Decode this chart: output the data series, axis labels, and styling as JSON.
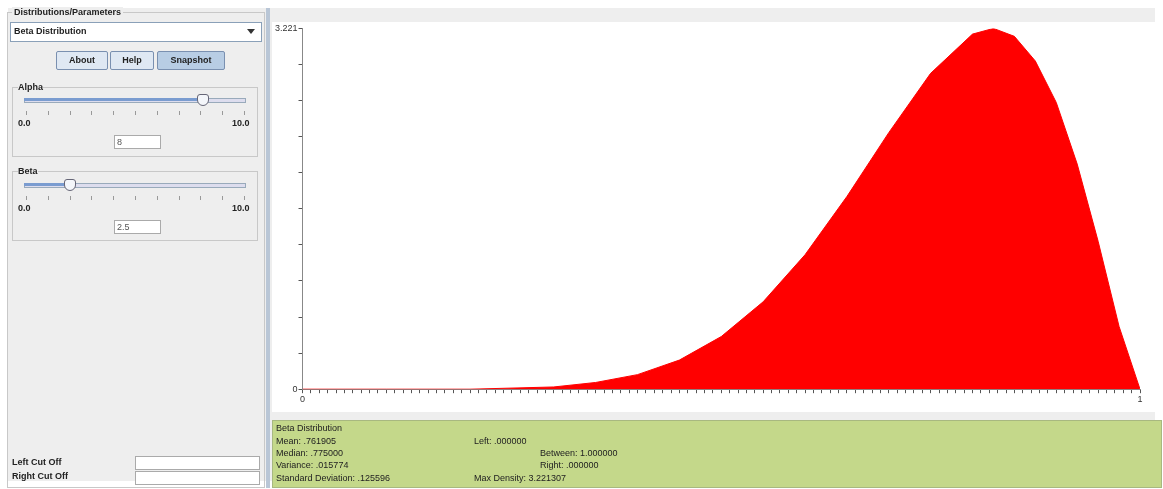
{
  "chart_data": {
    "type": "area",
    "color": "#ff0000",
    "marker": "none",
    "line_style": "solid",
    "grid": false,
    "x": [
      0,
      0.1,
      0.2,
      0.3,
      0.35,
      0.4,
      0.45,
      0.5,
      0.55,
      0.6,
      0.65,
      0.7,
      0.75,
      0.8,
      0.825,
      0.85,
      0.875,
      0.9,
      0.925,
      0.95,
      0.975,
      1
    ],
    "values": [
      0,
      0,
      0,
      0.02,
      0.06,
      0.13,
      0.26,
      0.47,
      0.78,
      1.2,
      1.72,
      2.29,
      2.82,
      3.17,
      3.221,
      3.15,
      2.93,
      2.56,
      2.01,
      1.32,
      0.56,
      0
    ],
    "xlim": [
      0,
      1
    ],
    "ylim": [
      0,
      3.221
    ],
    "yticks": [
      0,
      {
        "value": 0.3221,
        "label": null
      },
      {
        "value": 0.6442,
        "label": null
      },
      {
        "value": 0.9663,
        "label": null
      },
      {
        "value": 1.2884,
        "label": null
      },
      {
        "value": 1.6105,
        "label": null
      },
      {
        "value": 1.9326,
        "label": null
      },
      {
        "value": 2.2547,
        "label": null
      },
      {
        "value": 2.5768,
        "label": null
      },
      {
        "value": 2.8989,
        "label": null
      },
      3.221
    ],
    "xticks": [
      0,
      {
        "value": 0.01,
        "label": null
      },
      {
        "value": 0.02,
        "label": null
      },
      {
        "value": 0.03,
        "label": null
      },
      {
        "value": 0.04,
        "label": null
      },
      {
        "value": 0.05,
        "label": null
      },
      {
        "value": 0.06,
        "label": null
      },
      {
        "value": 0.07,
        "label": null
      },
      {
        "value": 0.08,
        "label": null
      },
      {
        "value": 0.09,
        "label": null
      },
      {
        "value": 0.1,
        "label": null
      },
      {
        "value": 0.11,
        "label": null
      },
      {
        "value": 0.12,
        "label": null
      },
      {
        "value": 0.13,
        "label": null
      },
      {
        "value": 0.14,
        "label": null
      },
      {
        "value": 0.15,
        "label": null
      },
      {
        "value": 0.16,
        "label": null
      },
      {
        "value": 0.17,
        "label": null
      },
      {
        "value": 0.18,
        "label": null
      },
      {
        "value": 0.19,
        "label": null
      },
      {
        "value": 0.2,
        "label": null
      },
      {
        "value": 0.21,
        "label": null
      },
      {
        "value": 0.22,
        "label": null
      },
      {
        "value": 0.23,
        "label": null
      },
      {
        "value": 0.24,
        "label": null
      },
      {
        "value": 0.25,
        "label": null
      },
      {
        "value": 0.26,
        "label": null
      },
      {
        "value": 0.27,
        "label": null
      },
      {
        "value": 0.28,
        "label": null
      },
      {
        "value": 0.29,
        "label": null
      },
      {
        "value": 0.3,
        "label": null
      },
      {
        "value": 0.31,
        "label": null
      },
      {
        "value": 0.32,
        "label": null
      },
      {
        "value": 0.33,
        "label": null
      },
      {
        "value": 0.34,
        "label": null
      },
      {
        "value": 0.35,
        "label": null
      },
      {
        "value": 0.36,
        "label": null
      },
      {
        "value": 0.37,
        "label": null
      },
      {
        "value": 0.38,
        "label": null
      },
      {
        "value": 0.39,
        "label": null
      },
      {
        "value": 0.4,
        "label": null
      },
      {
        "value": 0.41,
        "label": null
      },
      {
        "value": 0.42,
        "label": null
      },
      {
        "value": 0.43,
        "label": null
      },
      {
        "value": 0.44,
        "label": null
      },
      {
        "value": 0.45,
        "label": null
      },
      {
        "value": 0.46,
        "label": null
      },
      {
        "value": 0.47,
        "label": null
      },
      {
        "value": 0.48,
        "label": null
      },
      {
        "value": 0.49,
        "label": null
      },
      {
        "value": 0.5,
        "label": null
      },
      {
        "value": 0.51,
        "label": null
      },
      {
        "value": 0.52,
        "label": null
      },
      {
        "value": 0.53,
        "label": null
      },
      {
        "value": 0.54,
        "label": null
      },
      {
        "value": 0.55,
        "label": null
      },
      {
        "value": 0.56,
        "label": null
      },
      {
        "value": 0.57,
        "label": null
      },
      {
        "value": 0.58,
        "label": null
      },
      {
        "value": 0.59,
        "label": null
      },
      {
        "value": 0.6,
        "label": null
      },
      {
        "value": 0.61,
        "label": null
      },
      {
        "value": 0.62,
        "label": null
      },
      {
        "value": 0.63,
        "label": null
      },
      {
        "value": 0.64,
        "label": null
      },
      {
        "value": 0.65,
        "label": null
      },
      {
        "value": 0.66,
        "label": null
      },
      {
        "value": 0.67,
        "label": null
      },
      {
        "value": 0.68,
        "label": null
      },
      {
        "value": 0.69,
        "label": null
      },
      {
        "value": 0.7,
        "label": null
      },
      {
        "value": 0.71,
        "label": null
      },
      {
        "value": 0.72,
        "label": null
      },
      {
        "value": 0.73,
        "label": null
      },
      {
        "value": 0.74,
        "label": null
      },
      {
        "value": 0.75,
        "label": null
      },
      {
        "value": 0.76,
        "label": null
      },
      {
        "value": 0.77,
        "label": null
      },
      {
        "value": 0.78,
        "label": null
      },
      {
        "value": 0.79,
        "label": null
      },
      {
        "value": 0.8,
        "label": null
      },
      {
        "value": 0.81,
        "label": null
      },
      {
        "value": 0.82,
        "label": null
      },
      {
        "value": 0.83,
        "label": null
      },
      {
        "value": 0.84,
        "label": null
      },
      {
        "value": 0.85,
        "label": null
      },
      {
        "value": 0.86,
        "label": null
      },
      {
        "value": 0.87,
        "label": null
      },
      {
        "value": 0.88,
        "label": null
      },
      {
        "value": 0.89,
        "label": null
      },
      {
        "value": 0.9,
        "label": null
      },
      {
        "value": 0.91,
        "label": null
      },
      {
        "value": 0.92,
        "label": null
      },
      {
        "value": 0.93,
        "label": null
      },
      {
        "value": 0.94,
        "label": null
      },
      {
        "value": 0.95,
        "label": null
      },
      {
        "value": 0.96,
        "label": null
      },
      {
        "value": 0.97,
        "label": null
      },
      {
        "value": 0.98,
        "label": null
      },
      {
        "value": 0.99,
        "label": null
      },
      1
    ],
    "annotations": [
      "Distributions/Parameters",
      "Beta Distribution",
      "About",
      "Help",
      "Snapshot",
      "Alpha",
      "0.0",
      "10.0",
      "8",
      "Beta",
      "0.0",
      "10.0",
      "2.5",
      "Left Cut Off",
      "Right Cut Off",
      "Beta Distribution",
      "Mean: .761905",
      "Median: .775000",
      "Variance: .015774",
      "Standard Deviation: .125596",
      "Left: .000000",
      "Between: 1.000000",
      "Right: .000000",
      "Max Density: 3.221307"
    ]
  }
}
